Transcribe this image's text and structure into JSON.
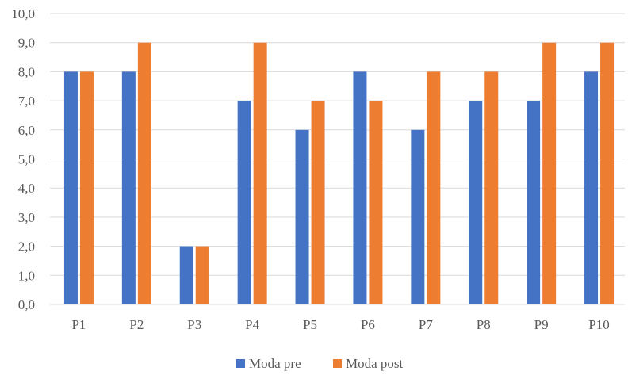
{
  "chart_data": {
    "type": "bar",
    "title": "",
    "xlabel": "",
    "ylabel": "",
    "categories": [
      "P1",
      "P2",
      "P3",
      "P4",
      "P5",
      "P6",
      "P7",
      "P8",
      "P9",
      "P10"
    ],
    "series": [
      {
        "name": "Moda pre",
        "values": [
          8,
          8,
          2,
          7,
          6,
          8,
          6,
          7,
          7,
          8
        ],
        "color": "#4472C4"
      },
      {
        "name": "Moda post",
        "values": [
          8,
          9,
          2,
          9,
          7,
          7,
          8,
          8,
          9,
          9
        ],
        "color": "#ED7D31"
      }
    ],
    "ylim": [
      0,
      10
    ],
    "y_ticks": [
      "0,0",
      "1,0",
      "2,0",
      "3,0",
      "4,0",
      "5,0",
      "6,0",
      "7,0",
      "8,0",
      "9,0",
      "10,0"
    ],
    "grid": true,
    "grid_color": "#D9D9D9",
    "legend": "bottom"
  }
}
